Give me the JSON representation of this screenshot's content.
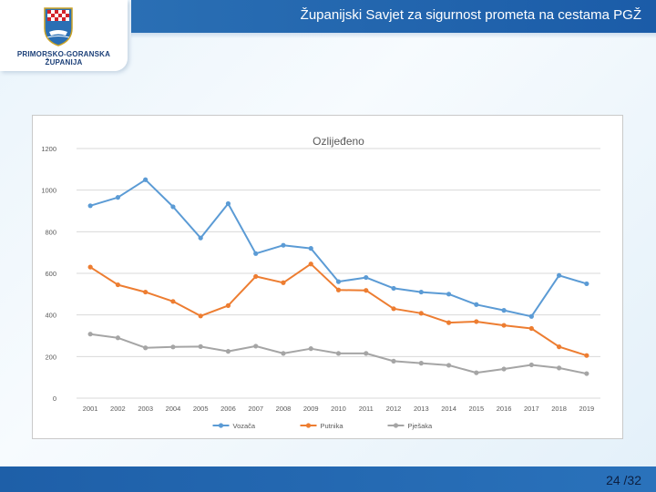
{
  "header": {
    "title": "Županijski Savjet za sigurnost prometa na cestama PGŽ"
  },
  "logo": {
    "line1": "PRIMORSKO-GORANSKA",
    "line2": "ŽUPANIJA"
  },
  "footer": {
    "page_number": "24 /32"
  },
  "colors": {
    "header_blue": "#2a6fb4",
    "series_vozaca": "#5b9bd5",
    "series_putnika": "#ed7d31",
    "series_pjesaka": "#a5a5a5"
  },
  "chart_data": {
    "type": "line",
    "title": "Ozlijeđeno",
    "xlabel": "",
    "ylabel": "",
    "ylim": [
      0,
      1200
    ],
    "yticks": [
      "0",
      "200",
      "400",
      "600",
      "800",
      "1000",
      "1200"
    ],
    "grid": true,
    "legend_position": "bottom",
    "categories": [
      "2001",
      "2002",
      "2003",
      "2004",
      "2005",
      "2006",
      "2007",
      "2008",
      "2009",
      "2010",
      "2011",
      "2012",
      "2013",
      "2014",
      "2015",
      "2016",
      "2017",
      "2018",
      "2019"
    ],
    "series": [
      {
        "name": "Vozača",
        "color": "#5b9bd5",
        "values": [
          925,
          965,
          1050,
          920,
          770,
          935,
          695,
          735,
          720,
          560,
          580,
          528,
          510,
          500,
          450,
          422,
          393,
          590,
          550
        ]
      },
      {
        "name": "Putnika",
        "color": "#ed7d31",
        "values": [
          630,
          545,
          510,
          465,
          395,
          445,
          585,
          555,
          645,
          520,
          518,
          430,
          408,
          363,
          368,
          350,
          335,
          247,
          205
        ]
      },
      {
        "name": "Pješaka",
        "color": "#a5a5a5",
        "values": [
          308,
          290,
          242,
          246,
          248,
          225,
          250,
          215,
          238,
          215,
          215,
          178,
          168,
          158,
          122,
          140,
          160,
          145,
          118
        ]
      }
    ]
  }
}
